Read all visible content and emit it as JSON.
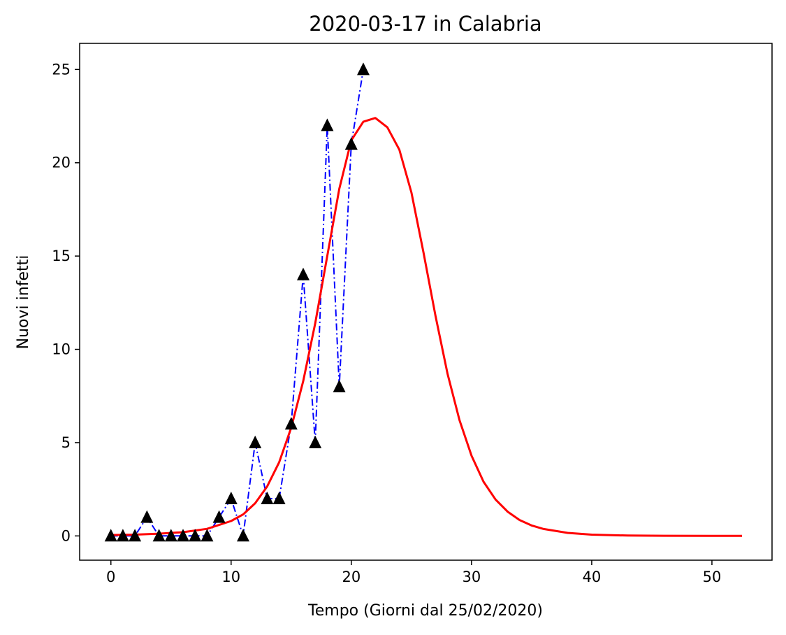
{
  "chart_data": {
    "type": "line",
    "title": "2020-03-17 in Calabria",
    "xlabel": "Tempo (Giorni dal 25/02/2020)",
    "ylabel": "Nuovi infetti",
    "xlim": [
      -2.6,
      55
    ],
    "ylim": [
      -1.3,
      26.4
    ],
    "xticks": [
      0,
      10,
      20,
      30,
      40,
      50
    ],
    "yticks": [
      0,
      5,
      10,
      15,
      20,
      25
    ],
    "grid": false,
    "series": [
      {
        "style": "dash-dot line with triangle markers",
        "color": "#0000ff",
        "marker_color": "#000000",
        "x": [
          0,
          1,
          2,
          3,
          4,
          5,
          6,
          7,
          8,
          9,
          10,
          11,
          12,
          13,
          14,
          15,
          16,
          17,
          18,
          19,
          20,
          21
        ],
        "y": [
          0,
          0,
          0,
          1,
          0,
          0,
          0,
          0,
          0,
          1,
          2,
          0,
          5,
          2,
          2,
          6,
          14,
          5,
          22,
          8,
          21,
          25
        ]
      },
      {
        "style": "solid line",
        "color": "#ff0000",
        "x": [
          0,
          2,
          4,
          6,
          8,
          10,
          11,
          12,
          13,
          14,
          15,
          16,
          17,
          18,
          19,
          20,
          21,
          22,
          23,
          24,
          25,
          26,
          27,
          28,
          29,
          30,
          31,
          32,
          33,
          34,
          35,
          36,
          38,
          40,
          43,
          46,
          50,
          52.5
        ],
        "y": [
          0.05,
          0.07,
          0.12,
          0.2,
          0.38,
          0.8,
          1.15,
          1.75,
          2.65,
          3.95,
          5.8,
          8.3,
          11.4,
          15.0,
          18.6,
          21.2,
          22.2,
          22.4,
          21.9,
          20.7,
          18.4,
          15.2,
          11.8,
          8.7,
          6.2,
          4.3,
          2.9,
          1.95,
          1.3,
          0.85,
          0.56,
          0.37,
          0.16,
          0.07,
          0.02,
          0.01,
          0.0,
          0.0
        ]
      }
    ]
  }
}
